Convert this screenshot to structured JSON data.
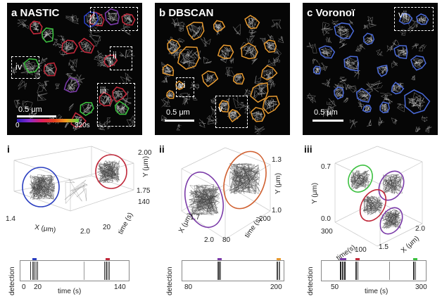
{
  "top_panels": {
    "a": {
      "letter": "a",
      "title": "NASTIC",
      "scale_label": "0.5 μm",
      "cmap_start": "0",
      "cmap_end": "320s",
      "rois": [
        "i",
        "ii",
        "iii",
        "iv"
      ]
    },
    "b": {
      "letter": "b",
      "title": "DBSCAN",
      "scale_label": "0.5 μm",
      "rois": [
        "vi",
        "v"
      ]
    },
    "c": {
      "letter": "c",
      "title": "Voronoï",
      "scale_label": "0.5 μm",
      "rois": [
        "vii"
      ]
    }
  },
  "plots": {
    "i": {
      "label": "i",
      "z_ticks": [
        "2.00",
        "1.75"
      ],
      "z_label": "Y (μm)",
      "time_ticks": [
        "140",
        "20"
      ],
      "time_label": "time (s)",
      "x_ticks": [
        "1.4",
        "2.0"
      ],
      "x_label": "X (μm)",
      "det_label": "detection",
      "det_xticks": [
        "0",
        "20",
        "140"
      ],
      "det_xlabel": "time (s)"
    },
    "ii": {
      "label": "ii",
      "z_ticks": [
        "1.3",
        "1.0"
      ],
      "z_label": "Y (μm)",
      "time_ticks": [
        "200",
        "80"
      ],
      "time_label": "time (s)",
      "x_ticks": [
        "1.7",
        "2.0"
      ],
      "x_label": "X (μm)",
      "det_label": "detection",
      "det_xticks": [
        "80",
        "200"
      ],
      "det_xlabel": ""
    },
    "iii": {
      "label": "iii",
      "z_ticks": [
        "0.7",
        "0.0"
      ],
      "z_label": "Y (μm)",
      "time_ticks": [
        "300",
        "100"
      ],
      "time_label": "time(s)",
      "x_ticks": [
        "1.5",
        "2.0"
      ],
      "x_label": "X (μm)",
      "det_label": "detection",
      "det_xticks": [
        "50",
        "300"
      ],
      "det_xlabel": "time (s)"
    }
  },
  "colors": {
    "blue": "#2a3ec0",
    "red": "#c0283a",
    "green": "#3cc040",
    "orange": "#e79a30",
    "purple": "#7a3aa8",
    "cluster_blue": "#4a6ad8"
  }
}
